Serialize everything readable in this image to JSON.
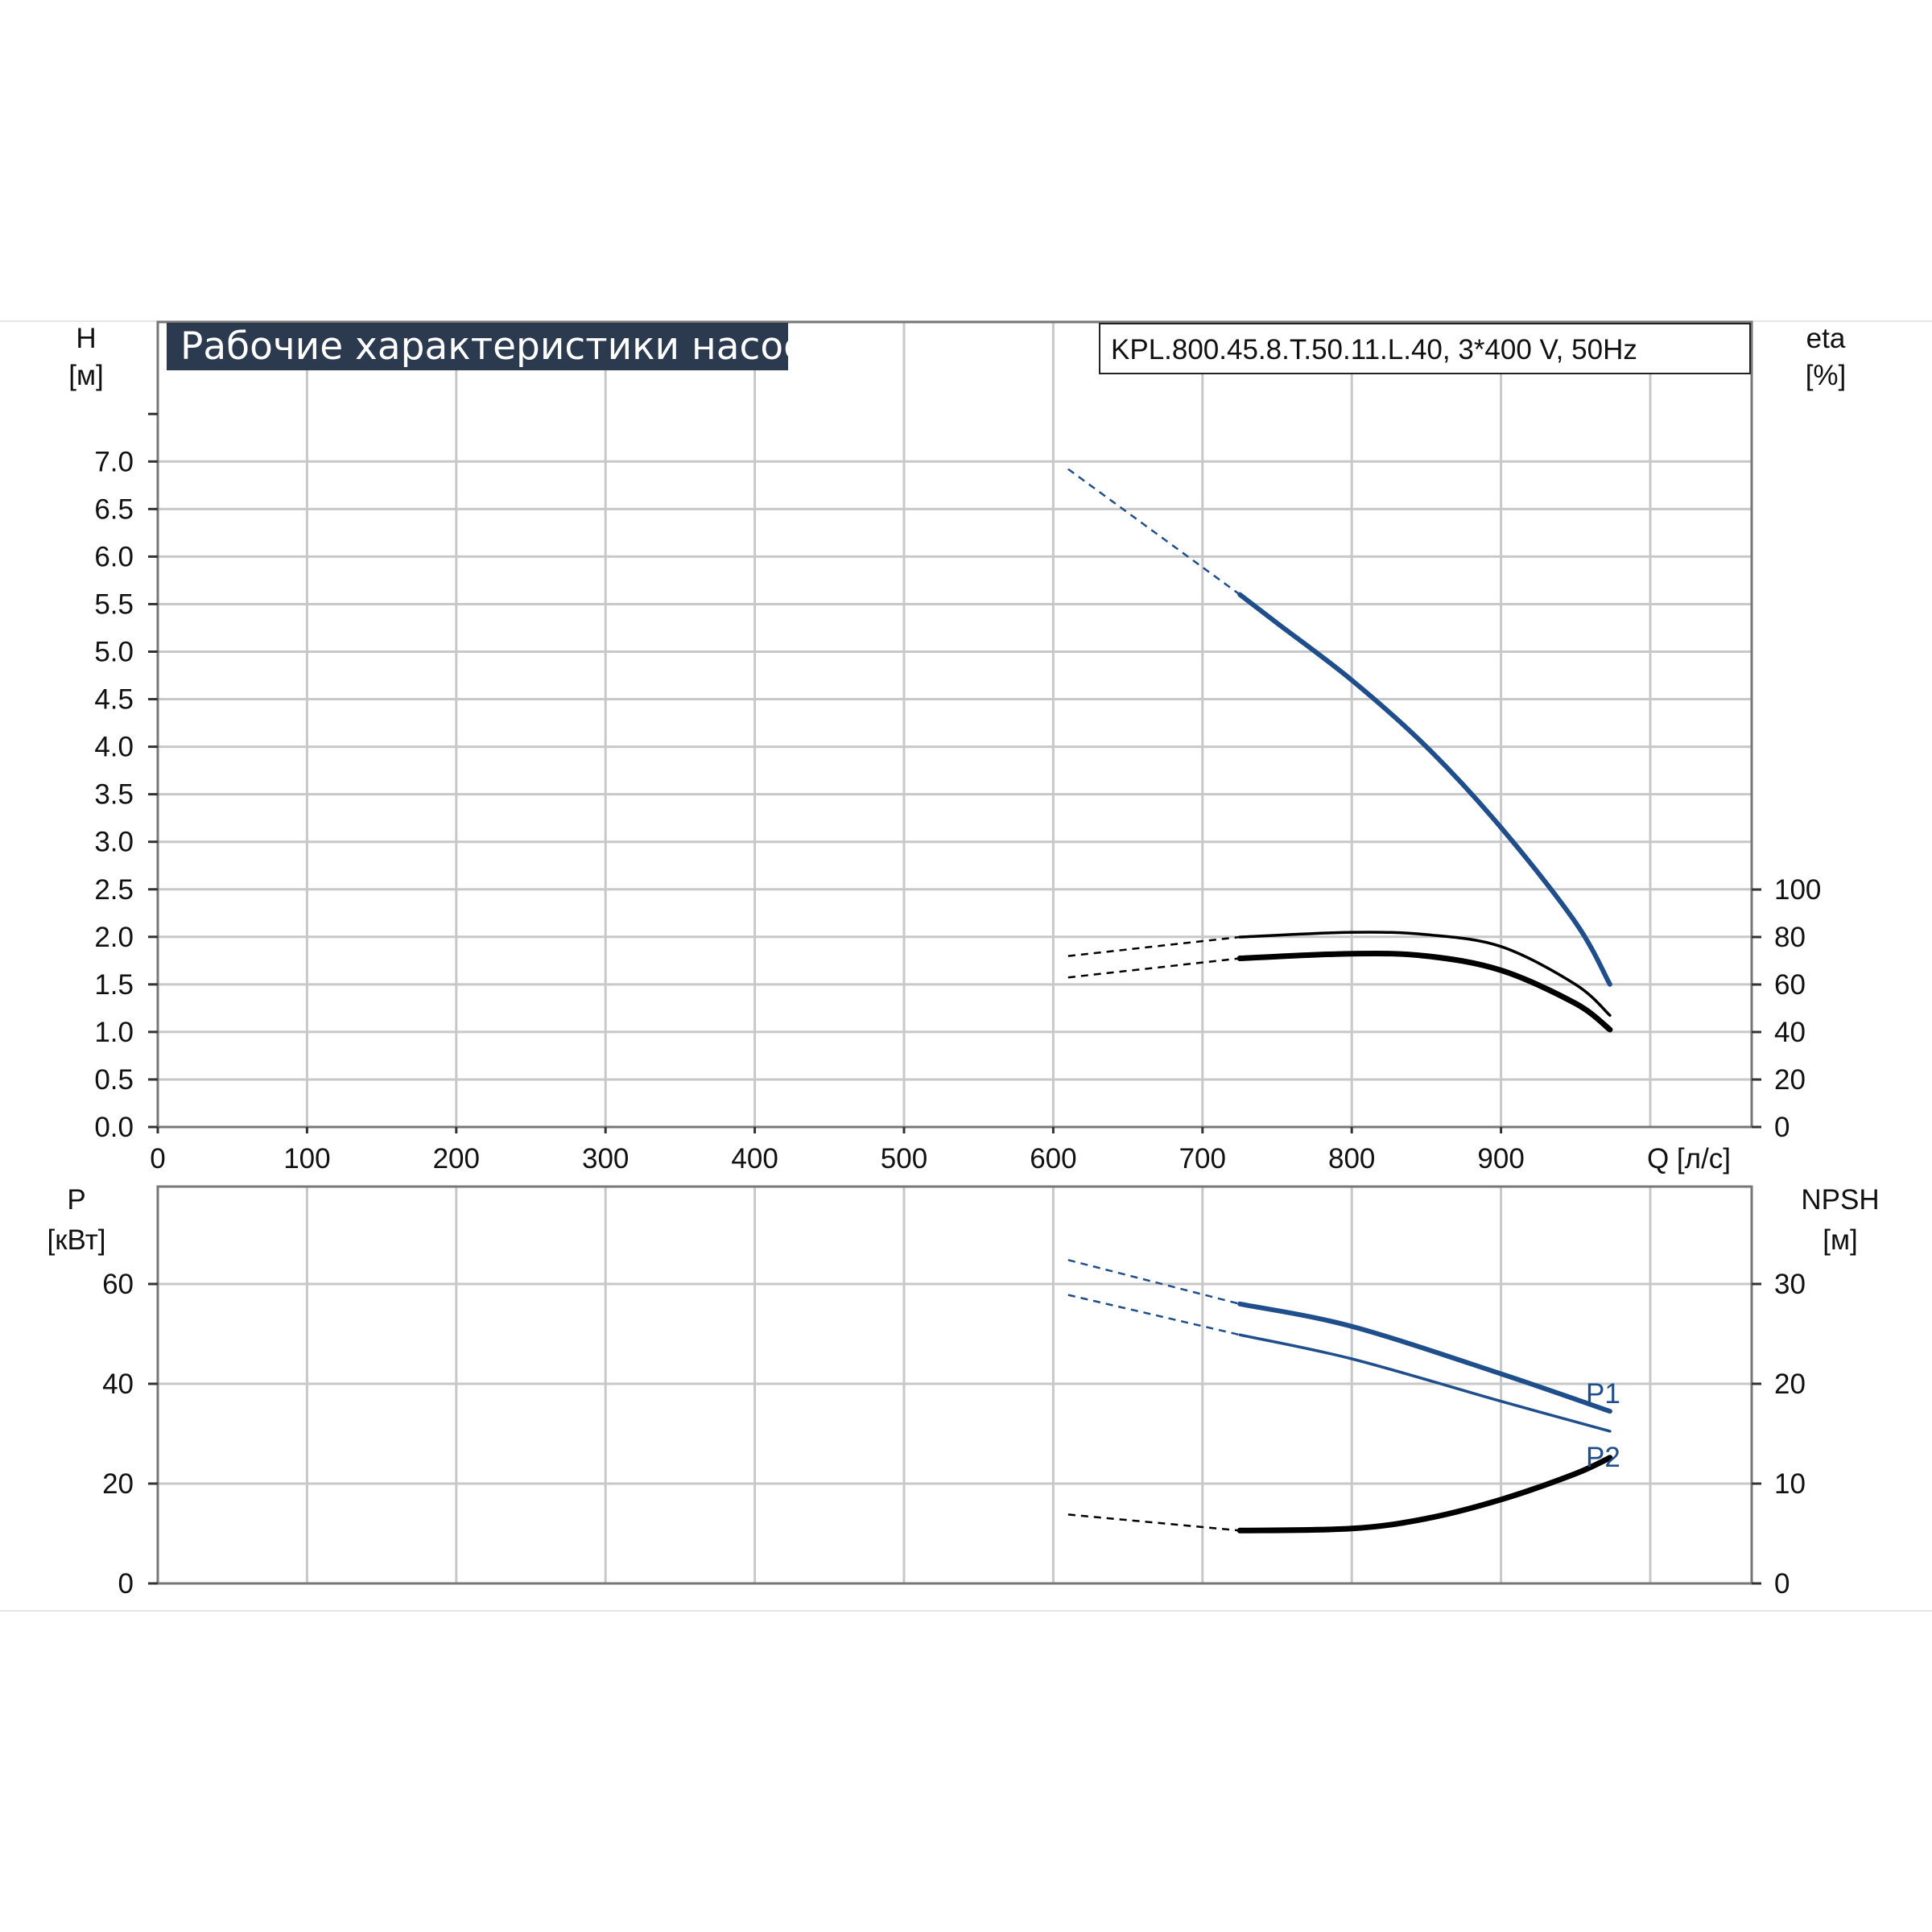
{
  "title_banner": "Рабочие характеристики насоса",
  "model_label": "KPL.800.45.8.T.50.11.L.40, 3*400 V, 50Hz",
  "colors": {
    "blue": "#1f4e8c",
    "black": "#000000",
    "grid": "#c8c8c8",
    "banner_bg": "#2b3a4f"
  },
  "chart_data": [
    {
      "type": "line",
      "id": "head-efficiency",
      "x_axis": {
        "label": "Q [л/с]",
        "range": [
          0,
          1070
        ],
        "ticks": [
          "0",
          "100",
          "200",
          "300",
          "400",
          "500",
          "600",
          "700",
          "800",
          "900"
        ],
        "grid": true
      },
      "y_axis_left": {
        "label_line1": "H",
        "label_line2": "[м]",
        "range": [
          0,
          7.5
        ],
        "ticks": [
          "0.0",
          "0.5",
          "1.0",
          "1.5",
          "2.0",
          "2.5",
          "3.0",
          "3.5",
          "4.0",
          "4.5",
          "5.0",
          "5.5",
          "6.0",
          "6.5",
          "7.0"
        ]
      },
      "y_axis_right": {
        "label_line1": "eta",
        "label_line2": "[%]",
        "range": [
          0,
          195
        ],
        "ticks": [
          "0",
          "20",
          "40",
          "60",
          "80",
          "100"
        ]
      },
      "series": [
        {
          "key": "H",
          "axis": "left",
          "color": "#1f4e8c",
          "extrapolated": [
            [
              610,
              6.92
            ],
            [
              725,
              5.6
            ]
          ],
          "points": [
            [
              725,
              5.6
            ],
            [
              750,
              5.3
            ],
            [
              800,
              4.7
            ],
            [
              850,
              4.0
            ],
            [
              900,
              3.15
            ],
            [
              950,
              2.15
            ],
            [
              973,
              1.5
            ]
          ]
        },
        {
          "key": "eta_a",
          "axis": "right",
          "color": "#000000",
          "extrapolated": [
            [
              610,
              72
            ],
            [
              725,
              80
            ]
          ],
          "points": [
            [
              725,
              80
            ],
            [
              800,
              82
            ],
            [
              850,
              81
            ],
            [
              900,
              76
            ],
            [
              950,
              60
            ],
            [
              973,
              47
            ]
          ]
        },
        {
          "key": "eta_b",
          "axis": "right",
          "color": "#000000",
          "extrapolated": [
            [
              610,
              63
            ],
            [
              725,
              71
            ]
          ],
          "points": [
            [
              725,
              71
            ],
            [
              800,
              73
            ],
            [
              850,
              72
            ],
            [
              900,
              66
            ],
            [
              950,
              52
            ],
            [
              973,
              41
            ]
          ]
        }
      ]
    },
    {
      "type": "line",
      "id": "power-npsh",
      "x_axis": {
        "range": [
          0,
          1070
        ],
        "grid": true
      },
      "y_axis_left": {
        "label_line1": "P",
        "label_line2": "[кВт]",
        "range": [
          0,
          80
        ],
        "ticks": [
          "0",
          "20",
          "40",
          "60"
        ]
      },
      "y_axis_right": {
        "label_line1": "NPSH",
        "label_line2": "[м]",
        "range": [
          0,
          40
        ],
        "ticks": [
          "0",
          "10",
          "20",
          "30"
        ]
      },
      "series": [
        {
          "name": "P1",
          "axis": "left",
          "color": "#1f4e8c",
          "extrapolated": [
            [
              610,
              64.8
            ],
            [
              725,
              56
            ]
          ],
          "points": [
            [
              725,
              56
            ],
            [
              800,
              51.5
            ],
            [
              900,
              42
            ],
            [
              973,
              34.5
            ]
          ]
        },
        {
          "name": "P2",
          "axis": "left",
          "color": "#1f4e8c",
          "extrapolated": [
            [
              610,
              57.8
            ],
            [
              725,
              49.8
            ]
          ],
          "points": [
            [
              725,
              49.8
            ],
            [
              800,
              45
            ],
            [
              900,
              36.5
            ],
            [
              973,
              30.5
            ]
          ]
        },
        {
          "key": "NPSH",
          "axis": "right",
          "color": "#000000",
          "extrapolated": [
            [
              610,
              6.9
            ],
            [
              725,
              5.3
            ]
          ],
          "points": [
            [
              725,
              5.3
            ],
            [
              800,
              5.5
            ],
            [
              850,
              6.5
            ],
            [
              900,
              8.4
            ],
            [
              950,
              11.0
            ],
            [
              973,
              12.6
            ]
          ]
        }
      ]
    }
  ]
}
